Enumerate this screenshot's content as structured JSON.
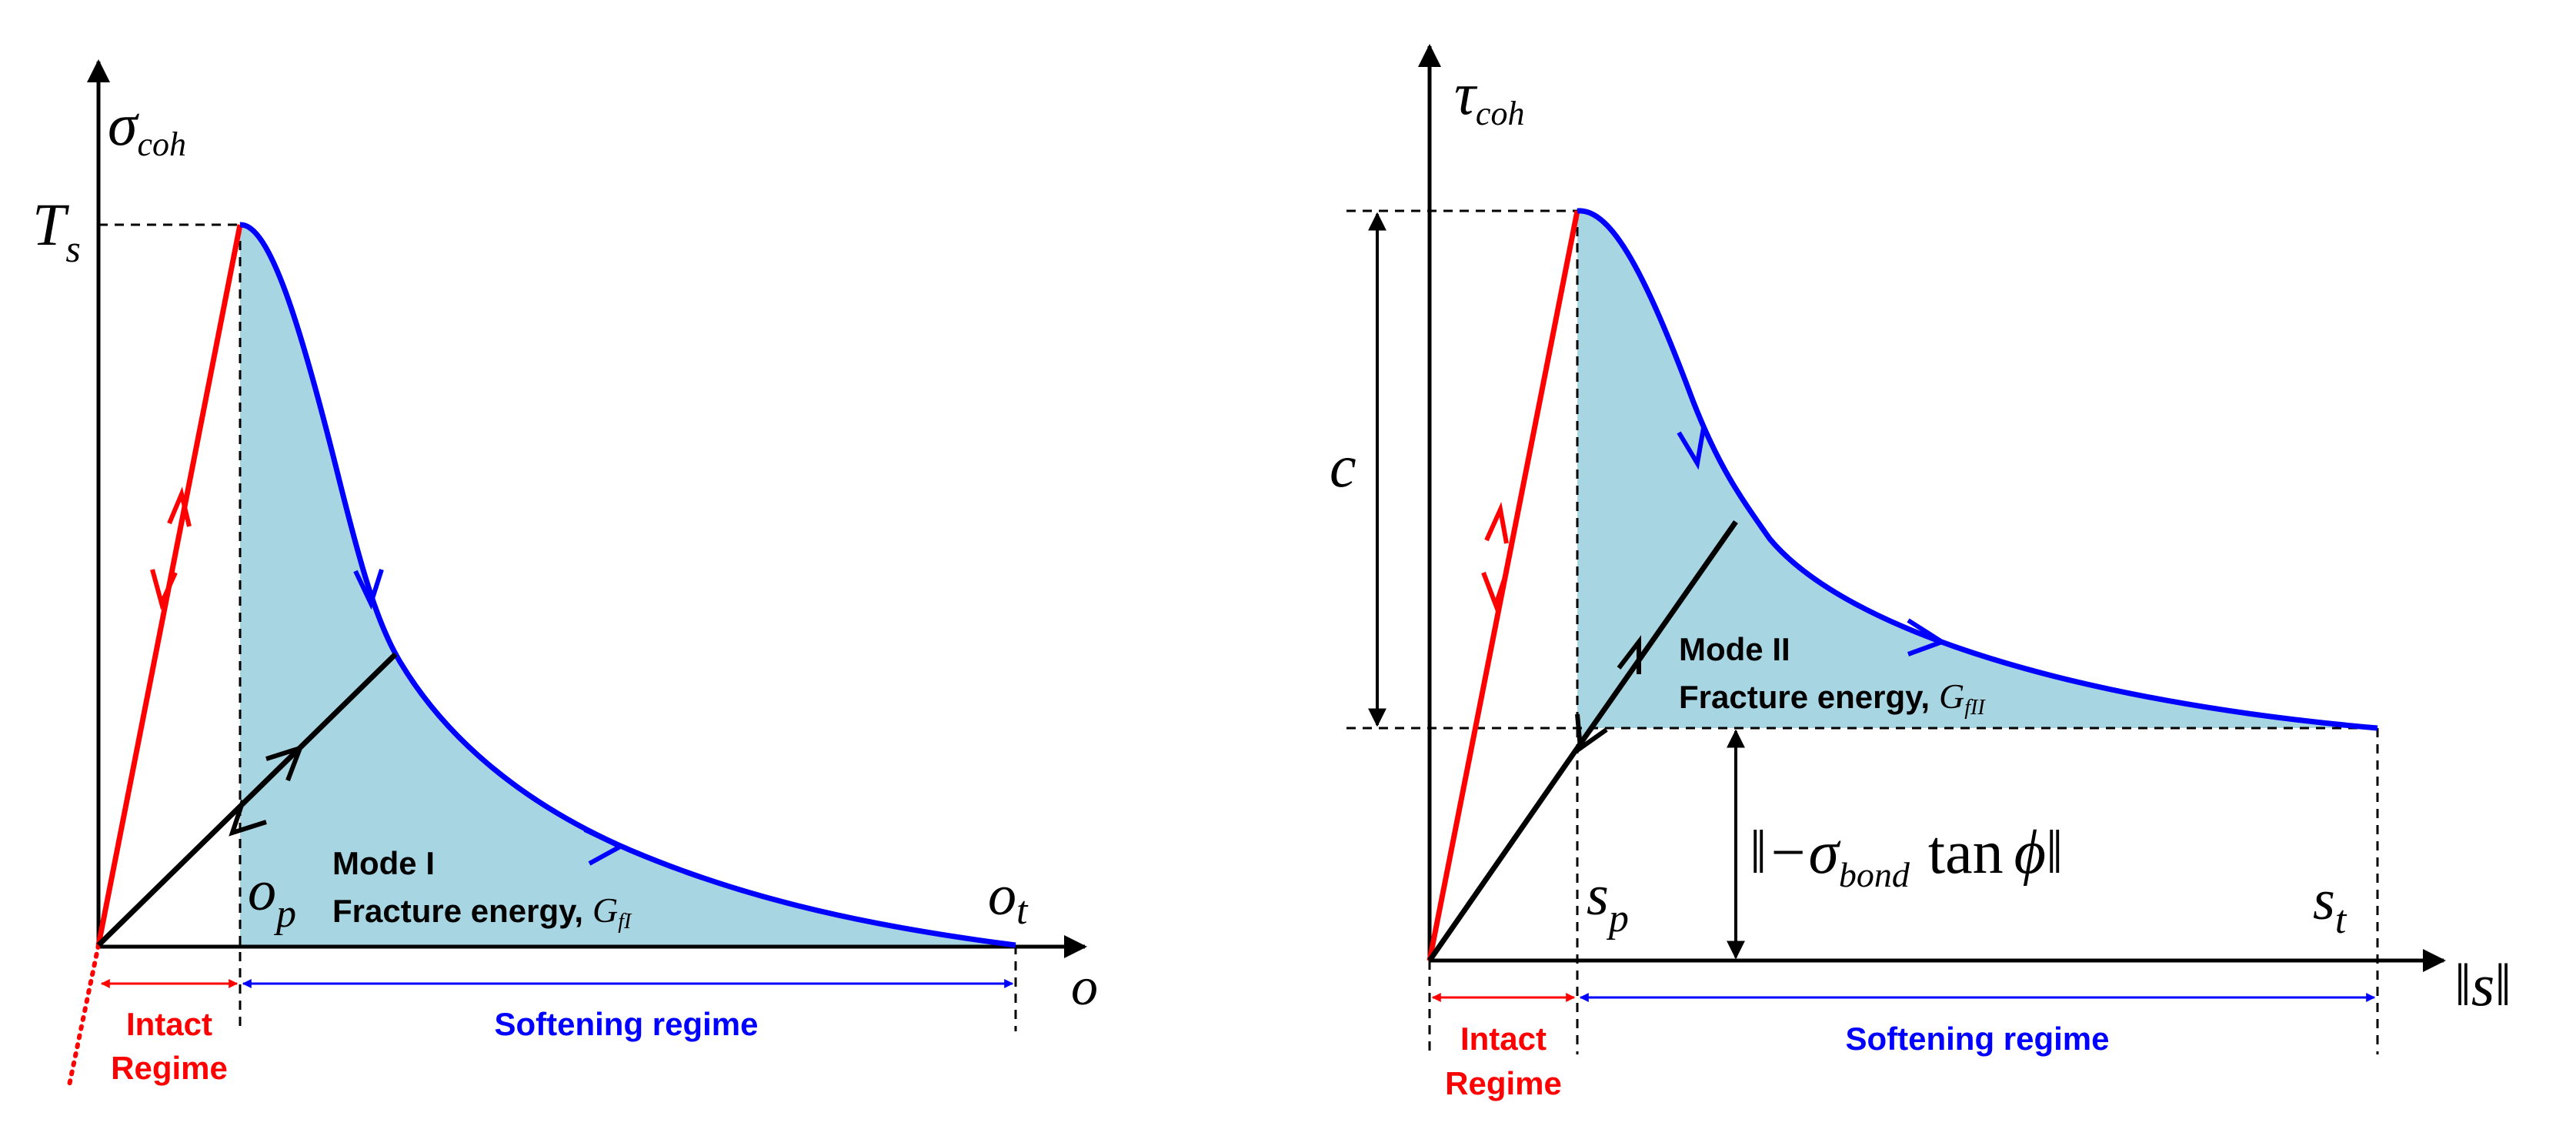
{
  "colors": {
    "elastic": "#ff0000",
    "softening": "#0000ff",
    "unloading": "#000000",
    "fracture_fill": "#a8d5e2"
  },
  "left_panel": {
    "y_axis_symbol": "σ",
    "y_axis_subscript": "coh",
    "x_axis_symbol": "o",
    "peak_symbol": "T",
    "peak_subscript": "s",
    "onset_symbol": "o",
    "onset_subscript": "p",
    "final_symbol": "o",
    "final_subscript": "t",
    "mode_label": "Mode I",
    "energy_label": "Fracture energy,",
    "energy_symbol": "G",
    "energy_subscript": "fI",
    "intact_label_line1": "Intact",
    "intact_label_line2": "Regime",
    "softening_label": "Softening regime"
  },
  "right_panel": {
    "y_axis_symbol": "τ",
    "y_axis_subscript": "coh",
    "x_axis_symbol": "s",
    "cohesion_symbol": "c",
    "onset_symbol": "s",
    "onset_subscript": "p",
    "final_symbol": "s",
    "final_subscript": "t",
    "friction_lead": "−σ",
    "friction_subscript": "bond",
    "friction_tan": "tan",
    "friction_phi": "ϕ",
    "mode_label": "Mode II",
    "energy_label": "Fracture energy,",
    "energy_symbol": "G",
    "energy_subscript": "fII",
    "intact_label_line1": "Intact",
    "intact_label_line2": "Regime",
    "softening_label": "Softening regime"
  }
}
